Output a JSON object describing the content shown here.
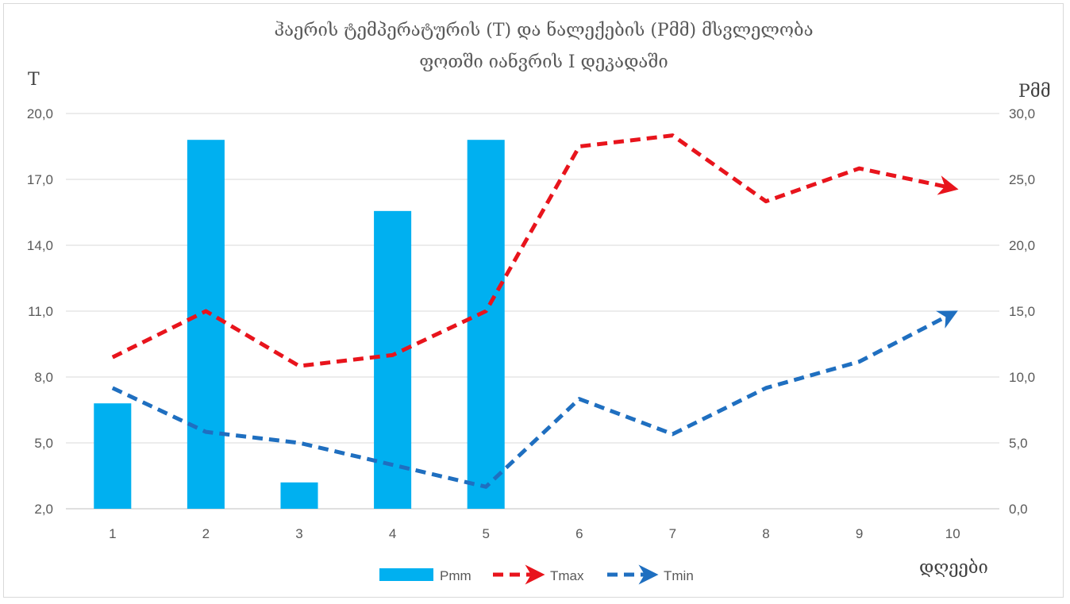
{
  "chart_data": {
    "type": "bar",
    "title_lines": [
      "ჰაერის ტემპერატურის (T) და ნალექების (Pმმ) მსვლელობა",
      "ფოთში იანვრის I დეკადაში"
    ],
    "left_axis_label": "T",
    "right_axis_label": "Pმმ",
    "xlabel": "დღეები",
    "categories": [
      "1",
      "2",
      "3",
      "4",
      "5",
      "6",
      "7",
      "8",
      "9",
      "10"
    ],
    "left_ylim": [
      2.0,
      20.0
    ],
    "left_ticks": [
      "2,0",
      "5,0",
      "8,0",
      "11,0",
      "14,0",
      "17,0",
      "20,0"
    ],
    "right_ylim": [
      0.0,
      30.0
    ],
    "right_ticks": [
      "0,0",
      "5,0",
      "10,0",
      "15,0",
      "20,0",
      "25,0",
      "30,0"
    ],
    "grid": true,
    "legend_position": "bottom",
    "series": [
      {
        "name": "Pmm",
        "type": "bar",
        "axis": "right",
        "color": "#00b0f0",
        "values": [
          8.0,
          28.0,
          2.0,
          22.6,
          28.0,
          null,
          null,
          null,
          null,
          null
        ]
      },
      {
        "name": "Tmax",
        "type": "line",
        "axis": "left",
        "style": "dashed-arrow",
        "color": "#e8141c",
        "values": [
          8.9,
          11.0,
          8.5,
          9.0,
          11.0,
          18.5,
          19.0,
          16.0,
          17.5,
          16.6
        ]
      },
      {
        "name": "Tmin",
        "type": "line",
        "axis": "left",
        "style": "dashed-arrow",
        "color": "#1f6fc0",
        "values": [
          7.5,
          5.5,
          5.0,
          4.0,
          3.0,
          7.0,
          5.4,
          7.5,
          8.7,
          10.9
        ]
      }
    ]
  }
}
